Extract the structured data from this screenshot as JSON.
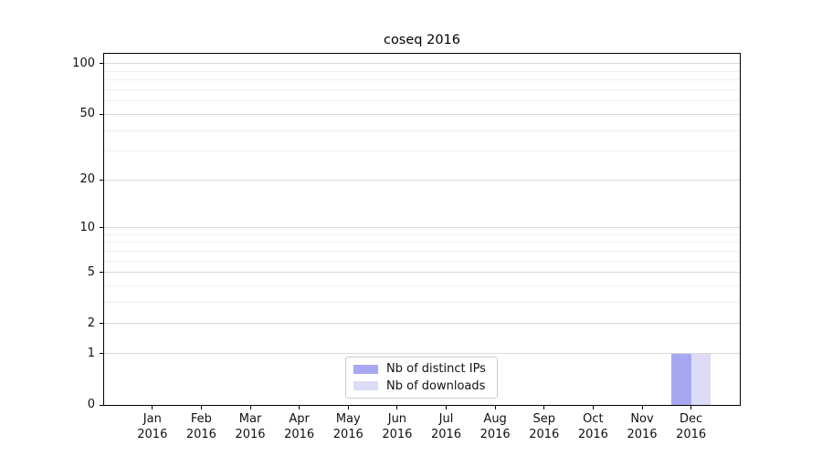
{
  "chart_data": {
    "type": "bar",
    "title": "coseq 2016",
    "categories": [
      "Jan",
      "Feb",
      "Mar",
      "Apr",
      "May",
      "Jun",
      "Jul",
      "Aug",
      "Sep",
      "Oct",
      "Nov",
      "Dec"
    ],
    "year": "2016",
    "series": [
      {
        "name": "Nb of distinct IPs",
        "color": "#a8a8f1",
        "values": [
          0,
          0,
          0,
          0,
          0,
          0,
          0,
          0,
          0,
          0,
          0,
          1
        ]
      },
      {
        "name": "Nb of downloads",
        "color": "#dcdcf6",
        "values": [
          0,
          0,
          0,
          0,
          0,
          0,
          0,
          0,
          0,
          0,
          0,
          1
        ]
      }
    ],
    "y_axis": {
      "scale": "log1p",
      "major_ticks": [
        0,
        1,
        2,
        5,
        10,
        20,
        50,
        100
      ],
      "minor_ticks": [
        3,
        4,
        6,
        7,
        8,
        9,
        30,
        40,
        60,
        70,
        80,
        90
      ],
      "ylim": [
        0,
        115
      ]
    },
    "xlabel": "",
    "ylabel": "",
    "grid": true,
    "legend_position": "lower center"
  },
  "colors": {
    "bar_distinct_ips": "#a8a8f1",
    "bar_downloads": "#dcdcf6",
    "grid_major": "#d9d9d9",
    "grid_minor": "#efefef",
    "spine": "#000000",
    "text": "#111111",
    "legend_border": "#cccccc",
    "background": "#ffffff"
  }
}
